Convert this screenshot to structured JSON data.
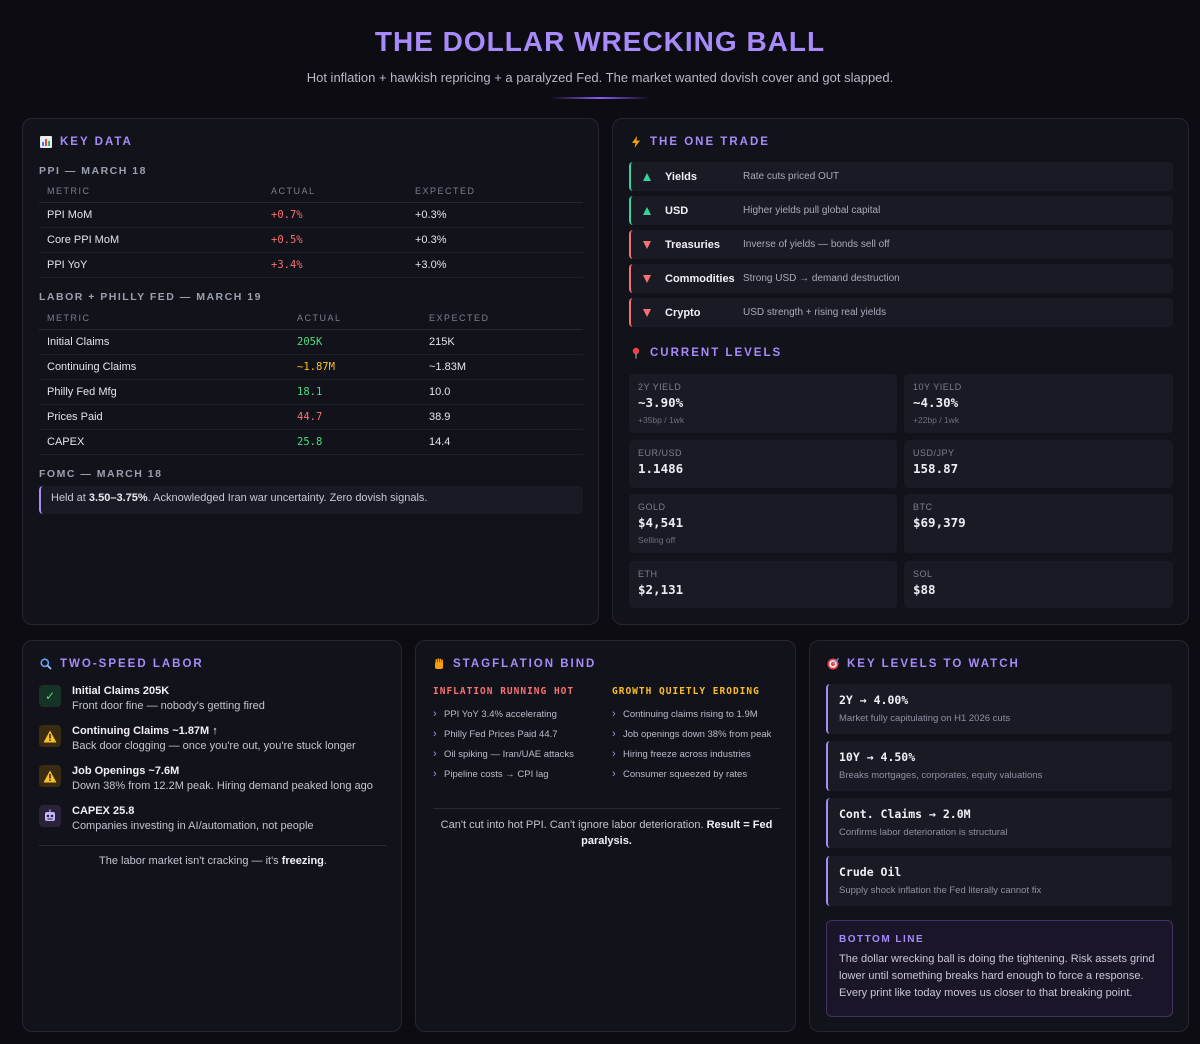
{
  "header": {
    "title": "THE DOLLAR WRECKING BALL",
    "subtitle": "Hot inflation + hawkish repricing + a paralyzed Fed. The market wanted dovish cover and got slapped."
  },
  "key_data": {
    "title": "KEY DATA",
    "ppi": {
      "heading": "PPI — MARCH 18",
      "columns": [
        "METRIC",
        "ACTUAL",
        "EXPECTED"
      ],
      "rows": [
        {
          "metric": "PPI MoM",
          "actual": "+0.7%",
          "expected": "+0.3%"
        },
        {
          "metric": "Core PPI MoM",
          "actual": "+0.5%",
          "expected": "+0.3%"
        },
        {
          "metric": "PPI YoY",
          "actual": "+3.4%",
          "expected": "+3.0%"
        }
      ]
    },
    "labor": {
      "heading": "LABOR + PHILLY FED — MARCH 19",
      "columns": [
        "METRIC",
        "ACTUAL",
        "EXPECTED"
      ],
      "rows": [
        {
          "metric": "Initial Claims",
          "actual": "205K",
          "expected": "215K"
        },
        {
          "metric": "Continuing Claims",
          "actual": "~1.87M",
          "expected": "~1.83M"
        },
        {
          "metric": "Philly Fed Mfg",
          "actual": "18.1",
          "expected": "10.0"
        },
        {
          "metric": "Prices Paid",
          "actual": "44.7",
          "expected": "38.9"
        },
        {
          "metric": "CAPEX",
          "actual": "25.8",
          "expected": "14.4"
        }
      ]
    },
    "fomc": {
      "heading": "FOMC — MARCH 18",
      "prefix": "Held at ",
      "range": "3.50–3.75%",
      "suffix": ". Acknowledged Iran war uncertainty. Zero dovish signals."
    }
  },
  "one_trade": {
    "title": "THE ONE TRADE",
    "rows": [
      {
        "name": "Yields",
        "desc": "Rate cuts priced OUT",
        "direction": "up"
      },
      {
        "name": "USD",
        "desc": "Higher yields pull global capital",
        "direction": "up"
      },
      {
        "name": "Treasuries",
        "desc": "Inverse of yields — bonds sell off",
        "direction": "down"
      },
      {
        "name": "Commodities",
        "desc": "Strong USD → demand destruction",
        "direction": "down"
      },
      {
        "name": "Crypto",
        "desc": "USD strength + rising real yields",
        "direction": "down"
      }
    ]
  },
  "current_levels": {
    "title": "CURRENT LEVELS",
    "items": [
      {
        "label": "2Y YIELD",
        "value": "~3.90%",
        "note": "+35bp / 1wk"
      },
      {
        "label": "10Y YIELD",
        "value": "~4.30%",
        "note": "+22bp / 1wk"
      },
      {
        "label": "EUR/USD",
        "value": "1.1486",
        "note": ""
      },
      {
        "label": "USD/JPY",
        "value": "158.87",
        "note": ""
      },
      {
        "label": "GOLD",
        "value": "$4,541",
        "note": "Selling off"
      },
      {
        "label": "BTC",
        "value": "$69,379",
        "note": ""
      },
      {
        "label": "ETH",
        "value": "$2,131",
        "note": ""
      },
      {
        "label": "SOL",
        "value": "$88",
        "note": ""
      }
    ]
  },
  "two_speed_labor": {
    "title": "TWO-SPEED LABOR",
    "items": [
      {
        "title": "Initial Claims 205K",
        "desc": "Front door fine — nobody's getting fired",
        "icon": "check-icon"
      },
      {
        "title": "Continuing Claims ~1.87M ↑",
        "desc": "Back door clogging — once you're out, you're stuck longer",
        "icon": "warning-icon"
      },
      {
        "title": "Job Openings ~7.6M",
        "desc": "Down 38% from 12.2M peak. Hiring demand peaked long ago",
        "icon": "warning-icon"
      },
      {
        "title": "CAPEX 25.8",
        "desc": "Companies investing in AI/automation, not people",
        "icon": "robot-icon"
      }
    ],
    "footer_prefix": "The labor market isn't cracking — it's ",
    "footer_bold": "freezing",
    "footer_suffix": "."
  },
  "stagflation": {
    "title": "STAGFLATION BIND",
    "inflation_heading": "INFLATION RUNNING HOT",
    "inflation_items": [
      "PPI YoY 3.4% accelerating",
      "Philly Fed Prices Paid 44.7",
      "Oil spiking — Iran/UAE attacks",
      "Pipeline costs → CPI lag"
    ],
    "growth_heading": "GROWTH QUIETLY ERODING",
    "growth_items": [
      "Continuing claims rising to 1.9M",
      "Job openings down 38% from peak",
      "Hiring freeze across industries",
      "Consumer squeezed by rates"
    ],
    "footer_text": "Can't cut into hot PPI. Can't ignore labor deterioration. ",
    "footer_bold": "Result = Fed paralysis."
  },
  "key_levels": {
    "title": "KEY LEVELS TO WATCH",
    "items": [
      {
        "title": "2Y → 4.00%",
        "desc": "Market fully capitulating on H1 2026 cuts"
      },
      {
        "title": "10Y → 4.50%",
        "desc": "Breaks mortgages, corporates, equity valuations"
      },
      {
        "title": "Cont. Claims → 2.0M",
        "desc": "Confirms labor deterioration is structural"
      },
      {
        "title": "Crude Oil",
        "desc": "Supply shock inflation the Fed literally cannot fix"
      }
    ],
    "bottom_line_title": "BOTTOM LINE",
    "bottom_line_text": "The dollar wrecking ball is doing the tightening. Risk assets grind lower until something breaks hard enough to force a response. Every print like today moves us closer to that breaking point."
  },
  "colors": {
    "accent": "#a78bfa",
    "up": "#34d399",
    "down": "#f87171",
    "warning": "#fbbf24"
  }
}
